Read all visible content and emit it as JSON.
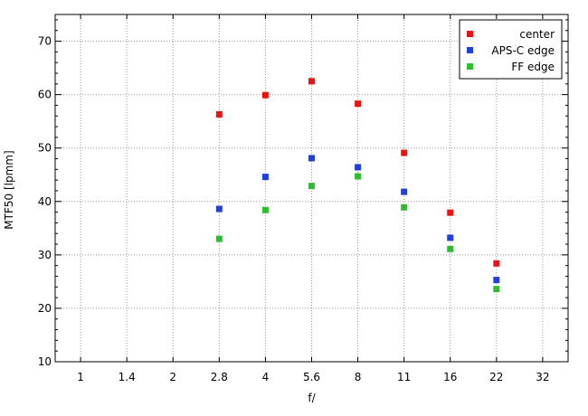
{
  "chart_data": {
    "type": "scatter",
    "x_tick_labels": [
      "1",
      "1.4",
      "2",
      "2.8",
      "4",
      "5.6",
      "8",
      "11",
      "16",
      "22",
      "32"
    ],
    "xlabel": "f/",
    "ylabel": "MTF50 [lpmm]",
    "ylim": [
      10,
      75
    ],
    "y_ticks": [
      10,
      20,
      30,
      40,
      50,
      60,
      70
    ],
    "grid": true,
    "legend_position": "top-right",
    "series": [
      {
        "name": "center",
        "color": "#ee1111",
        "x": [
          "2.8",
          "4",
          "5.6",
          "8",
          "11",
          "16",
          "22"
        ],
        "y": [
          56.3,
          59.9,
          62.5,
          58.3,
          49.1,
          37.9,
          28.4
        ]
      },
      {
        "name": "APS-C edge",
        "color": "#1f3fe0",
        "x": [
          "2.8",
          "4",
          "5.6",
          "8",
          "11",
          "16",
          "22"
        ],
        "y": [
          38.6,
          44.6,
          48.1,
          46.4,
          41.8,
          33.2,
          25.3
        ]
      },
      {
        "name": "FF edge",
        "color": "#2ebd2e",
        "x": [
          "2.8",
          "4",
          "5.6",
          "8",
          "11",
          "16",
          "22"
        ],
        "y": [
          33.0,
          38.4,
          42.9,
          44.7,
          38.9,
          31.1,
          23.6
        ]
      }
    ]
  }
}
